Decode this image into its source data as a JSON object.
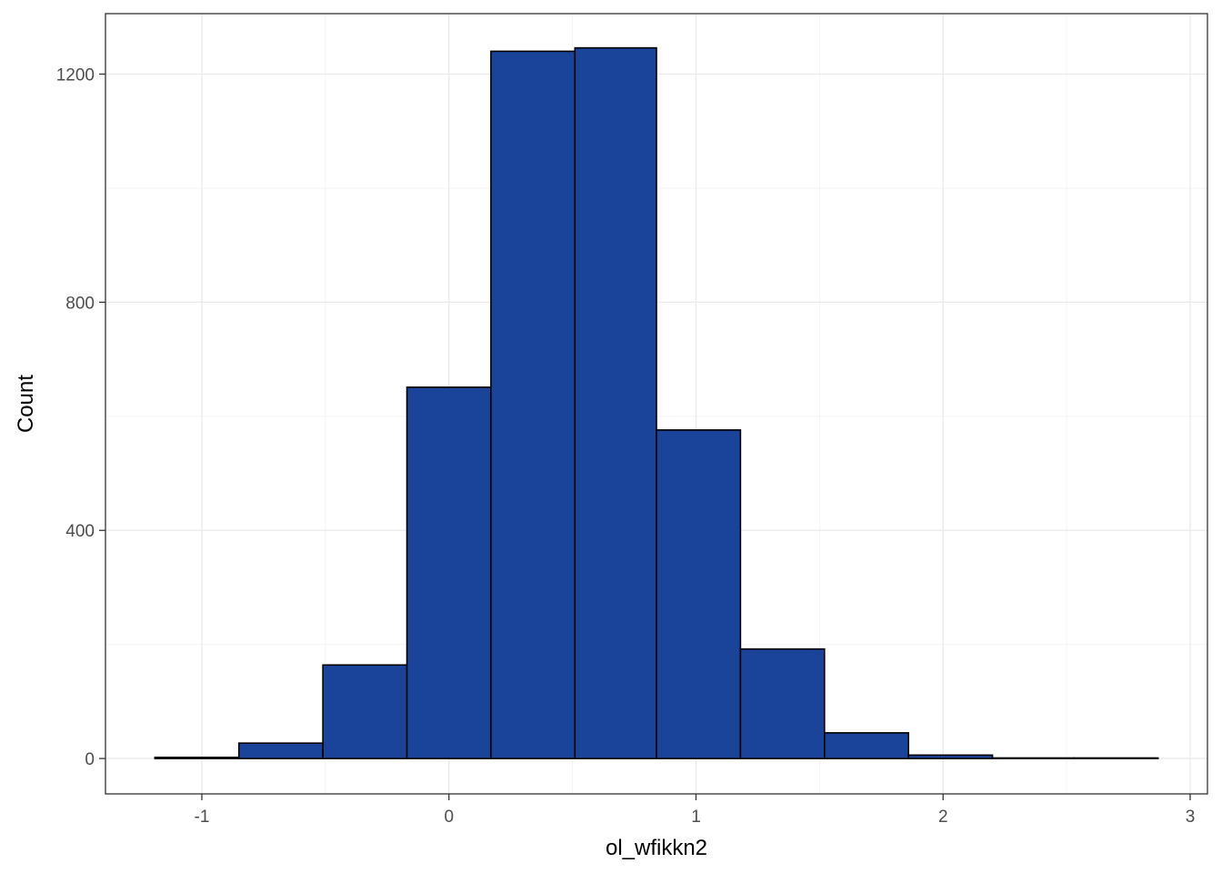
{
  "chart_data": {
    "type": "bar",
    "subtype": "histogram",
    "title": "",
    "xlabel": "ol_wfikkn2",
    "ylabel": "Count",
    "bins": [
      {
        "x_min": -1.19,
        "x_max": -0.85,
        "count": 2
      },
      {
        "x_min": -0.85,
        "x_max": -0.51,
        "count": 27
      },
      {
        "x_min": -0.51,
        "x_max": -0.17,
        "count": 164
      },
      {
        "x_min": -0.17,
        "x_max": 0.17,
        "count": 651
      },
      {
        "x_min": 0.17,
        "x_max": 0.51,
        "count": 1240
      },
      {
        "x_min": 0.51,
        "x_max": 0.84,
        "count": 1246
      },
      {
        "x_min": 0.84,
        "x_max": 1.18,
        "count": 576
      },
      {
        "x_min": 1.18,
        "x_max": 1.52,
        "count": 192
      },
      {
        "x_min": 1.52,
        "x_max": 1.86,
        "count": 45
      },
      {
        "x_min": 1.86,
        "x_max": 2.2,
        "count": 6
      },
      {
        "x_min": 2.2,
        "x_max": 2.53,
        "count": 1
      },
      {
        "x_min": 2.53,
        "x_max": 2.87,
        "count": 1
      }
    ],
    "xlim": [
      -1.39,
      3.07
    ],
    "ylim": [
      -62,
      1306
    ],
    "x_major_ticks": [
      -1,
      0,
      1,
      2,
      3
    ],
    "x_minor_ticks": [
      -0.5,
      0.5,
      1.5,
      2.5
    ],
    "x_tick_labels": [
      "-1",
      "0",
      "1",
      "2",
      "3"
    ],
    "y_major_ticks": [
      0,
      400,
      800,
      1200
    ],
    "y_minor_ticks": [
      200,
      600,
      1000
    ],
    "y_tick_labels": [
      "0",
      "400",
      "800",
      "1200"
    ],
    "grid": true,
    "legend": false,
    "colors": {
      "bar_fill": "#1a4499",
      "bar_outline": "#000000",
      "background": "#ffffff"
    }
  }
}
